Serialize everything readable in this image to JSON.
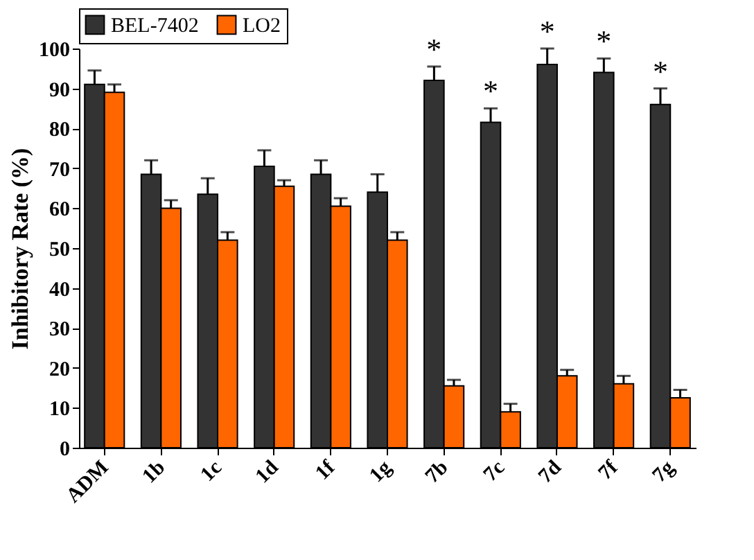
{
  "chart_data": {
    "type": "bar",
    "ylabel": "Inhibitory Rate (%)",
    "categories": [
      "ADM",
      "1b",
      "1c",
      "1d",
      "1f",
      "1g",
      "7b",
      "7c",
      "7d",
      "7f",
      "7g"
    ],
    "series": [
      {
        "name": "BEL-7402",
        "color": "#333333",
        "values": [
          91,
          68.5,
          63.5,
          70.5,
          68.5,
          64,
          92,
          81.5,
          96,
          94,
          86
        ],
        "errors": [
          [
            91,
            94.5
          ],
          [
            68.5,
            72
          ],
          [
            63.5,
            67.5
          ],
          [
            70.5,
            74.5
          ],
          [
            68.5,
            72
          ],
          [
            64,
            68.5
          ],
          [
            92,
            95.5
          ],
          [
            81.5,
            85
          ],
          [
            96,
            100
          ],
          [
            94,
            97.5
          ],
          [
            86,
            90
          ]
        ]
      },
      {
        "name": "LO2",
        "color": "#ff6600",
        "values": [
          89,
          60,
          52,
          65.5,
          60.5,
          52,
          15.5,
          9,
          18,
          16,
          12.5
        ],
        "errors": [
          [
            89,
            91
          ],
          [
            60,
            62
          ],
          [
            52,
            54
          ],
          [
            65.5,
            67
          ],
          [
            60.5,
            62.5
          ],
          [
            52,
            54
          ],
          [
            15.5,
            17
          ],
          [
            9,
            11
          ],
          [
            18,
            19.5
          ],
          [
            16,
            18
          ],
          [
            12.5,
            14.5
          ]
        ]
      }
    ],
    "annotations": [
      {
        "text": "*",
        "x": "7b",
        "y": 95.5
      },
      {
        "text": "*",
        "x": "7c",
        "y": 85
      },
      {
        "text": "*",
        "x": "7d",
        "y": 100
      },
      {
        "text": "*",
        "x": "7f",
        "y": 97.5
      },
      {
        "text": "*",
        "x": "7g",
        "y": 90
      }
    ],
    "ylim": [
      0,
      100
    ],
    "yticks": [
      0,
      10,
      20,
      30,
      40,
      50,
      60,
      70,
      80,
      90,
      100
    ],
    "grid": false,
    "legend": "top"
  }
}
